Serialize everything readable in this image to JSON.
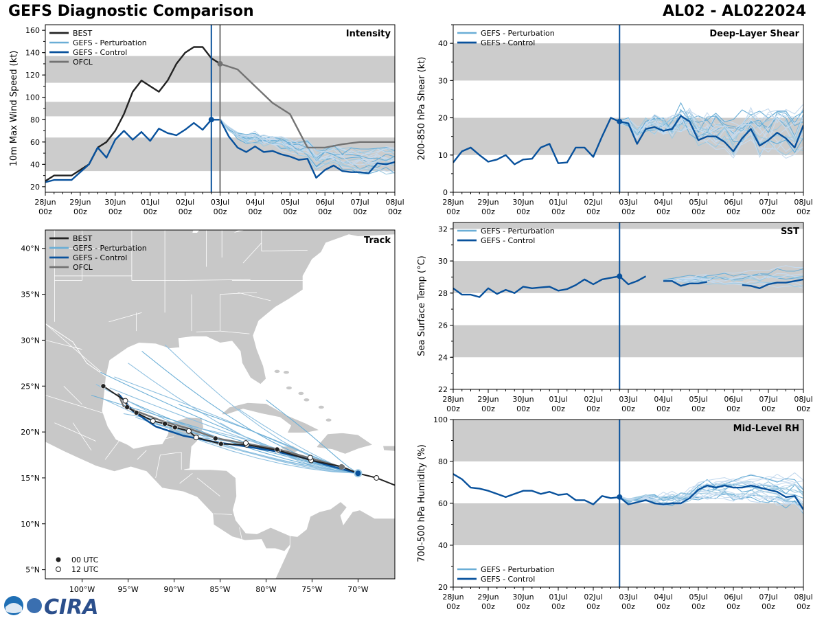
{
  "page": {
    "title_left": "GEFS Diagnostic Comparison",
    "title_right": "AL02 - AL022024",
    "logo_text": "CIRA",
    "logo_small": "NOAA"
  },
  "colors": {
    "best": "#222222",
    "perturbation": "#6aaed6",
    "control": "#08519c",
    "ofcl": "#737373",
    "shade": "#cccccc",
    "land": "#c8c8c8"
  },
  "time_ticks": [
    "28Jun\n00z",
    "29Jun\n00z",
    "30Jun\n00z",
    "01Jul\n00z",
    "02Jul\n00z",
    "03Jul\n00z",
    "04Jul\n00z",
    "05Jul\n00z",
    "06Jul\n00z",
    "07Jul\n00z",
    "08Jul\n00z"
  ],
  "chart_data": [
    {
      "id": "intensity",
      "type": "line",
      "title": "Intensity",
      "ylabel": "10m Max Wind Speed (kt)",
      "ylim": [
        15,
        165
      ],
      "yticks": [
        20,
        40,
        60,
        80,
        100,
        120,
        140,
        160
      ],
      "xlim_days": [
        0,
        10
      ],
      "shaded_bands": [
        [
          34,
          64
        ],
        [
          83,
          96
        ],
        [
          113,
          137
        ]
      ],
      "init_day": 4.75,
      "ofcl_init_day": 5.0,
      "legend": [
        "BEST",
        "GEFS - Perturbation",
        "GEFS - Control",
        "OFCL"
      ],
      "series": [
        {
          "name": "BEST",
          "x": [
            0,
            0.25,
            0.5,
            0.75,
            1,
            1.25,
            1.5,
            1.75,
            2,
            2.25,
            2.5,
            2.75,
            3,
            3.25,
            3.5,
            3.75,
            4,
            4.25,
            4.5,
            4.75,
            5
          ],
          "values": [
            25,
            30,
            30,
            30,
            35,
            40,
            55,
            60,
            70,
            85,
            105,
            115,
            110,
            105,
            115,
            130,
            140,
            145,
            145,
            135,
            130
          ]
        },
        {
          "name": "OFCL",
          "x": [
            5,
            5.5,
            6,
            6.5,
            7,
            7.5,
            8,
            8.5,
            9,
            9.5,
            10
          ],
          "values": [
            130,
            125,
            110,
            95,
            85,
            55,
            55,
            58,
            60,
            60,
            60
          ]
        },
        {
          "name": "GEFS - Control",
          "x": [
            0,
            0.25,
            0.5,
            0.75,
            1,
            1.25,
            1.5,
            1.75,
            2,
            2.25,
            2.5,
            2.75,
            3,
            3.25,
            3.5,
            3.75,
            4,
            4.25,
            4.5,
            4.75,
            5,
            5.25,
            5.5,
            5.75,
            6,
            6.25,
            6.5,
            6.75,
            7,
            7.25,
            7.5,
            7.75,
            8,
            8.25,
            8.5,
            8.75,
            9,
            9.25,
            9.5,
            9.75,
            10
          ],
          "values": [
            24,
            26,
            26,
            26,
            33,
            40,
            55,
            46,
            62,
            70,
            62,
            69,
            61,
            72,
            68,
            66,
            71,
            77,
            71,
            80,
            80,
            65,
            55,
            51,
            56,
            51,
            52,
            49,
            47,
            44,
            45,
            28,
            35,
            39,
            34,
            33,
            33,
            32,
            41,
            40,
            42
          ]
        }
      ],
      "perturbation_count": 20,
      "perturbation_start": [
        5,
        80
      ],
      "perturbation_end_range": [
        22,
        68
      ]
    },
    {
      "id": "shear",
      "type": "line",
      "title": "Deep-Layer Shear",
      "ylabel": "200-850 hPa Shear (kt)",
      "ylim": [
        0,
        45
      ],
      "yticks": [
        0,
        10,
        20,
        30,
        40
      ],
      "xlim_days": [
        0,
        10
      ],
      "shaded_bands": [
        [
          10,
          20
        ],
        [
          30,
          40
        ]
      ],
      "init_day": 4.75,
      "legend": [
        "GEFS - Perturbation",
        "GEFS - Control"
      ],
      "series": [
        {
          "name": "GEFS - Control",
          "x": [
            0,
            0.25,
            0.5,
            0.75,
            1,
            1.25,
            1.5,
            1.75,
            2,
            2.25,
            2.5,
            2.75,
            3,
            3.25,
            3.5,
            3.75,
            4,
            4.25,
            4.5,
            4.75,
            5,
            5.25,
            5.5,
            5.75,
            6,
            6.25,
            6.5,
            6.75,
            7,
            7.25,
            7.5,
            7.75,
            8,
            8.25,
            8.5,
            8.75,
            9,
            9.25,
            9.5,
            9.75,
            10
          ],
          "values": [
            8,
            11,
            12,
            10,
            8.2,
            8.8,
            10,
            7.5,
            8.8,
            9,
            12,
            13,
            7.8,
            8,
            12,
            12,
            9.5,
            15,
            20,
            19,
            18.5,
            13,
            17,
            17.5,
            16.5,
            17,
            20.5,
            19,
            14,
            15,
            15,
            13.5,
            11,
            14.5,
            17,
            12.5,
            14,
            16,
            14.5,
            12,
            18
          ]
        }
      ],
      "perturbation_count": 20,
      "perturbation_start": [
        4.75,
        19
      ],
      "perturbation_end_range": [
        3,
        30
      ]
    },
    {
      "id": "sst",
      "type": "line",
      "title": "SST",
      "ylabel": "Sea Surface Temp (°C)",
      "ylim": [
        22,
        32.4
      ],
      "yticks": [
        22,
        24,
        26,
        28,
        30,
        32
      ],
      "xlim_days": [
        0,
        10
      ],
      "shaded_bands": [
        [
          24,
          26
        ],
        [
          28,
          30
        ],
        [
          32,
          32.4
        ]
      ],
      "init_day": 4.75,
      "legend": [
        "GEFS - Perturbation",
        "GEFS - Control"
      ],
      "series": [
        {
          "name": "GEFS - Control",
          "x": [
            0,
            0.25,
            0.5,
            0.75,
            1,
            1.25,
            1.5,
            1.75,
            2,
            2.25,
            2.5,
            2.75,
            3,
            3.25,
            3.5,
            3.75,
            4,
            4.25,
            4.5,
            4.75,
            5,
            5.25,
            5.5,
            5.75
          ],
          "values": [
            28.3,
            27.9,
            27.9,
            27.75,
            28.3,
            27.95,
            28.2,
            28,
            28.4,
            28.3,
            28.35,
            28.4,
            28.15,
            28.25,
            28.5,
            28.85,
            28.55,
            28.85,
            28.95,
            29.05,
            28.55,
            28.75,
            29.05,
            null
          ]
        },
        {
          "name": "GEFS - Control",
          "x": [
            6,
            6.25,
            6.5,
            6.75,
            7,
            7.25
          ],
          "values": [
            28.75,
            28.75,
            28.45,
            28.6,
            28.6,
            28.7
          ]
        },
        {
          "name": "GEFS - Control",
          "x": [
            8.25,
            8.5,
            8.75,
            9,
            9.25,
            9.5,
            9.75,
            10
          ],
          "values": [
            28.5,
            28.45,
            28.3,
            28.55,
            28.65,
            28.65,
            28.75,
            28.85
          ]
        }
      ],
      "perturbation_count": 16,
      "perturbation_start": [
        6,
        28.8
      ],
      "perturbation_end_range": [
        28.3,
        29.8
      ]
    },
    {
      "id": "rh",
      "type": "line",
      "title": "Mid-Level RH",
      "ylabel": "700-500 hPa Humidity (%)",
      "ylim": [
        20,
        100
      ],
      "yticks": [
        20,
        40,
        60,
        80,
        100
      ],
      "xlim_days": [
        0,
        10
      ],
      "shaded_bands": [
        [
          40,
          60
        ],
        [
          80,
          100
        ]
      ],
      "init_day": 4.75,
      "legend": [
        "GEFS - Perturbation",
        "GEFS - Control"
      ],
      "series": [
        {
          "name": "GEFS - Control",
          "x": [
            0,
            0.25,
            0.5,
            0.75,
            1,
            1.25,
            1.5,
            1.75,
            2,
            2.25,
            2.5,
            2.75,
            3,
            3.25,
            3.5,
            3.75,
            4,
            4.25,
            4.5,
            4.75,
            5,
            5.25,
            5.5,
            5.75,
            6,
            6.25,
            6.5,
            6.75,
            7,
            7.25,
            7.5,
            7.75,
            8,
            8.25,
            8.5,
            8.75,
            9,
            9.25,
            9.5,
            9.75,
            10
          ],
          "values": [
            74,
            71.5,
            67.5,
            67,
            66,
            64.5,
            63,
            64.5,
            66,
            66,
            64.5,
            65.5,
            64,
            64.5,
            61.5,
            61.5,
            59.5,
            63.5,
            62.5,
            63,
            59.5,
            60.5,
            61.5,
            60,
            59.5,
            60,
            60,
            62.5,
            66.5,
            68.5,
            67.5,
            68.5,
            67.5,
            67.5,
            68.5,
            67.5,
            66.5,
            65.5,
            63,
            63.5,
            57
          ]
        }
      ],
      "perturbation_count": 20,
      "perturbation_start": [
        4.75,
        63
      ],
      "perturbation_end_range": [
        51,
        84
      ]
    },
    {
      "id": "track",
      "type": "scatter",
      "title": "Track",
      "lon_range": [
        -104,
        -66
      ],
      "lat_range": [
        4,
        42
      ],
      "lon_ticks": [
        "100°W",
        "95°W",
        "90°W",
        "85°W",
        "80°W",
        "75°W",
        "70°W"
      ],
      "lon_tick_values": [
        -100,
        -95,
        -90,
        -85,
        -80,
        -75,
        -70
      ],
      "lat_ticks": [
        "5°N",
        "10°N",
        "15°N",
        "20°N",
        "25°N",
        "30°N",
        "35°N",
        "40°N"
      ],
      "lat_tick_values": [
        5,
        10,
        15,
        20,
        25,
        30,
        35,
        40
      ],
      "legend": [
        "BEST",
        "GEFS - Perturbation",
        "GEFS - Control",
        "OFCL"
      ],
      "legend_points": [
        "00 UTC",
        "12 UTC"
      ],
      "best_track": [
        [
          -68,
          15
        ],
        [
          -70,
          15.5
        ],
        [
          -71.7,
          16.2
        ],
        [
          -75.1,
          16.9
        ],
        [
          -78.7,
          18
        ],
        [
          -82.1,
          18.6
        ],
        [
          -84.9,
          18.7
        ],
        [
          -87.6,
          19.4
        ],
        [
          -88.4,
          20.1
        ],
        [
          -89.9,
          20.5
        ],
        [
          -91,
          20.9
        ],
        [
          -92.3,
          21.2
        ],
        [
          -94.1,
          22.1
        ],
        [
          -95.1,
          22.7
        ],
        [
          -95.3,
          23.4
        ],
        [
          -97.7,
          25
        ]
      ],
      "best_00utc": [
        [
          -71.7,
          16.2
        ],
        [
          -78.7,
          18
        ],
        [
          -84.9,
          18.7
        ],
        [
          -89.9,
          20.5
        ],
        [
          -94.1,
          22.1
        ],
        [
          -97.7,
          25
        ],
        [
          -95.1,
          22.7
        ],
        [
          -91,
          20.9
        ],
        [
          -85.5,
          19.3
        ],
        [
          -78.8,
          18.1
        ]
      ],
      "best_12utc": [
        [
          -68,
          15
        ],
        [
          -75.1,
          16.9
        ],
        [
          -82.1,
          18.6
        ],
        [
          -87.6,
          19.4
        ],
        [
          -92.3,
          21.2
        ],
        [
          -95.3,
          23.4
        ],
        [
          -88.4,
          20.1
        ],
        [
          -82.2,
          18.8
        ],
        [
          -75.2,
          17.2
        ]
      ],
      "ofcl_track": [
        [
          -71.8,
          16.2
        ],
        [
          -75,
          17.1
        ],
        [
          -78.6,
          18.1
        ],
        [
          -82,
          18.7
        ],
        [
          -85.3,
          19.3
        ],
        [
          -88.2,
          20.3
        ],
        [
          -91.3,
          21.2
        ],
        [
          -95.5,
          22.8
        ],
        [
          -96.1,
          24.2
        ]
      ],
      "control_track": [
        [
          -70,
          15.5
        ],
        [
          -73,
          16.3
        ],
        [
          -76,
          17.2
        ],
        [
          -79,
          17.9
        ],
        [
          -82,
          18.4
        ],
        [
          -85.5,
          18.9
        ],
        [
          -89,
          19.6
        ],
        [
          -92,
          20.6
        ],
        [
          -94.5,
          22.3
        ],
        [
          -96,
          24.1
        ]
      ]
    }
  ]
}
